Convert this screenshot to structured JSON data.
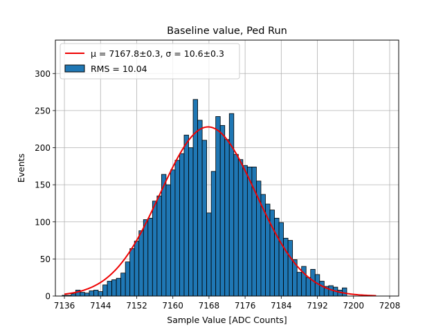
{
  "chart_data": {
    "type": "bar",
    "title": "Baseline value, Ped Run",
    "xlabel": "Sample Value [ADC Counts]",
    "ylabel": "Events",
    "xlim": [
      7134,
      7210
    ],
    "ylim": [
      0,
      345
    ],
    "xticks": [
      7136,
      7144,
      7152,
      7160,
      7168,
      7176,
      7184,
      7192,
      7200,
      7208
    ],
    "yticks": [
      0,
      50,
      100,
      150,
      200,
      250,
      300
    ],
    "grid": true,
    "legend_position": "top-left",
    "bin_width": 1,
    "bins": [
      7136,
      7137,
      7138,
      7139,
      7140,
      7141,
      7142,
      7143,
      7144,
      7145,
      7146,
      7147,
      7148,
      7149,
      7150,
      7151,
      7152,
      7153,
      7154,
      7155,
      7156,
      7157,
      7158,
      7159,
      7160,
      7161,
      7162,
      7163,
      7164,
      7165,
      7166,
      7167,
      7168,
      7169,
      7170,
      7171,
      7172,
      7173,
      7174,
      7175,
      7176,
      7177,
      7178,
      7179,
      7180,
      7181,
      7182,
      7183,
      7184,
      7185,
      7186,
      7187,
      7188,
      7189,
      7190,
      7191,
      7192,
      7193,
      7194,
      7195,
      7196,
      7197,
      7198
    ],
    "counts": [
      1,
      1,
      3,
      8,
      5,
      4,
      7,
      8,
      6,
      15,
      20,
      22,
      24,
      31,
      46,
      64,
      74,
      88,
      103,
      105,
      128,
      135,
      164,
      150,
      170,
      183,
      192,
      217,
      200,
      265,
      237,
      210,
      112,
      168,
      242,
      230,
      211,
      246,
      191,
      184,
      176,
      174,
      174,
      155,
      137,
      124,
      116,
      105,
      99,
      78,
      75,
      49,
      32,
      40,
      25,
      36,
      29,
      20,
      13,
      14,
      12,
      8,
      11
    ],
    "bar_color": "#1f77b4",
    "fit_color": "#ee0000",
    "series": [
      {
        "name": "μ = 7167.8±0.3, σ = 10.6±0.3",
        "type": "gaussian",
        "mu": 7167.8,
        "sigma": 10.6,
        "amplitude": 228,
        "x_range": [
          7136,
          7205
        ]
      },
      {
        "name": "RMS = 10.04",
        "type": "histogram"
      }
    ]
  }
}
